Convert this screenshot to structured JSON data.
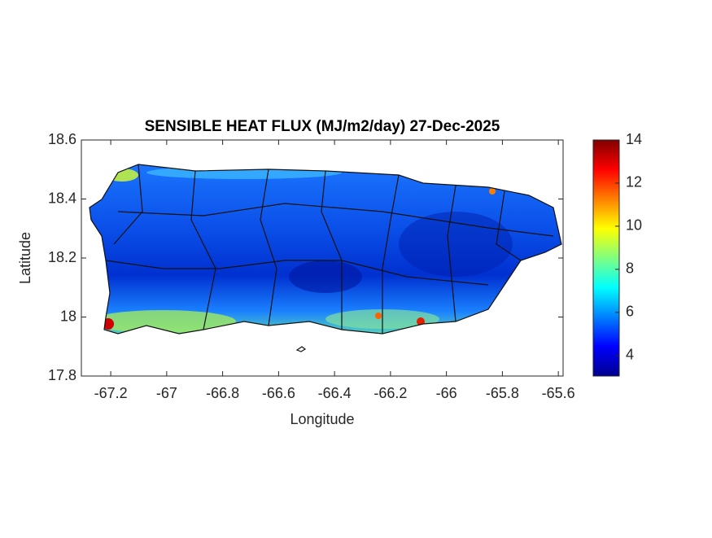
{
  "chart_data": {
    "type": "map",
    "title": "SENSIBLE HEAT FLUX (MJ/m2/day) 27-Dec-2025",
    "x_label": "Longitude",
    "y_label": "Latitude",
    "xlim": [
      -67.305,
      -65.583
    ],
    "xticks": [
      -67.2,
      -67,
      -66.8,
      -66.6,
      -66.4,
      -66.2,
      -66,
      -65.8,
      -65.6
    ],
    "ylim": [
      17.8,
      18.6
    ],
    "yticks": [
      17.8,
      18,
      18.2,
      18.4,
      18.6
    ],
    "colorbar": {
      "colormap": "jet",
      "clim": [
        3.05,
        14
      ],
      "ticks": [
        4,
        6,
        8,
        10,
        12,
        14
      ]
    }
  }
}
